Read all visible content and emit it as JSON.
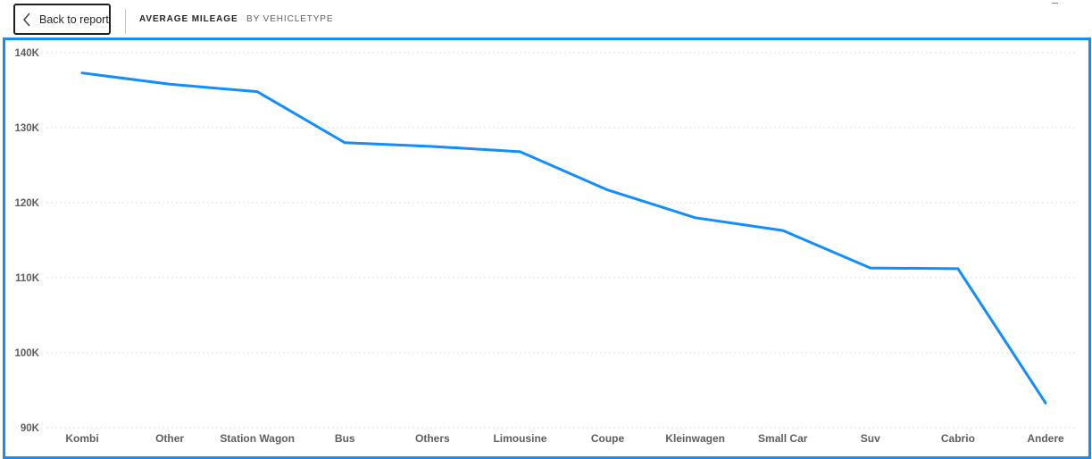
{
  "header": {
    "back_label": "Back to report",
    "title": "AVERAGE MILEAGE",
    "subtitle": "BY VEHICLETYPE"
  },
  "chart_data": {
    "type": "line",
    "title": "AVERAGE MILEAGE",
    "subtitle": "BY VEHICLETYPE",
    "xlabel": "",
    "ylabel": "",
    "categories": [
      "Kombi",
      "Other",
      "Station Wagon",
      "Bus",
      "Others",
      "Limousine",
      "Coupe",
      "Kleinwagen",
      "Small Car",
      "Suv",
      "Cabrio",
      "Andere"
    ],
    "series": [
      {
        "values": [
          137300,
          135800,
          134800,
          128000,
          127500,
          126800,
          121700,
          118000,
          116300,
          111300,
          111200,
          93300
        ]
      }
    ],
    "y_ticks": [
      90000,
      100000,
      110000,
      120000,
      130000,
      140000
    ],
    "y_tick_labels": [
      "90K",
      "100K",
      "110K",
      "120K",
      "130K",
      "140K"
    ],
    "ylim": [
      90000,
      140000
    ],
    "grid": true,
    "legend": "none",
    "colors": {
      "line": "#118dff",
      "grid": "#e1dfdd",
      "frame": "#118dff"
    }
  }
}
